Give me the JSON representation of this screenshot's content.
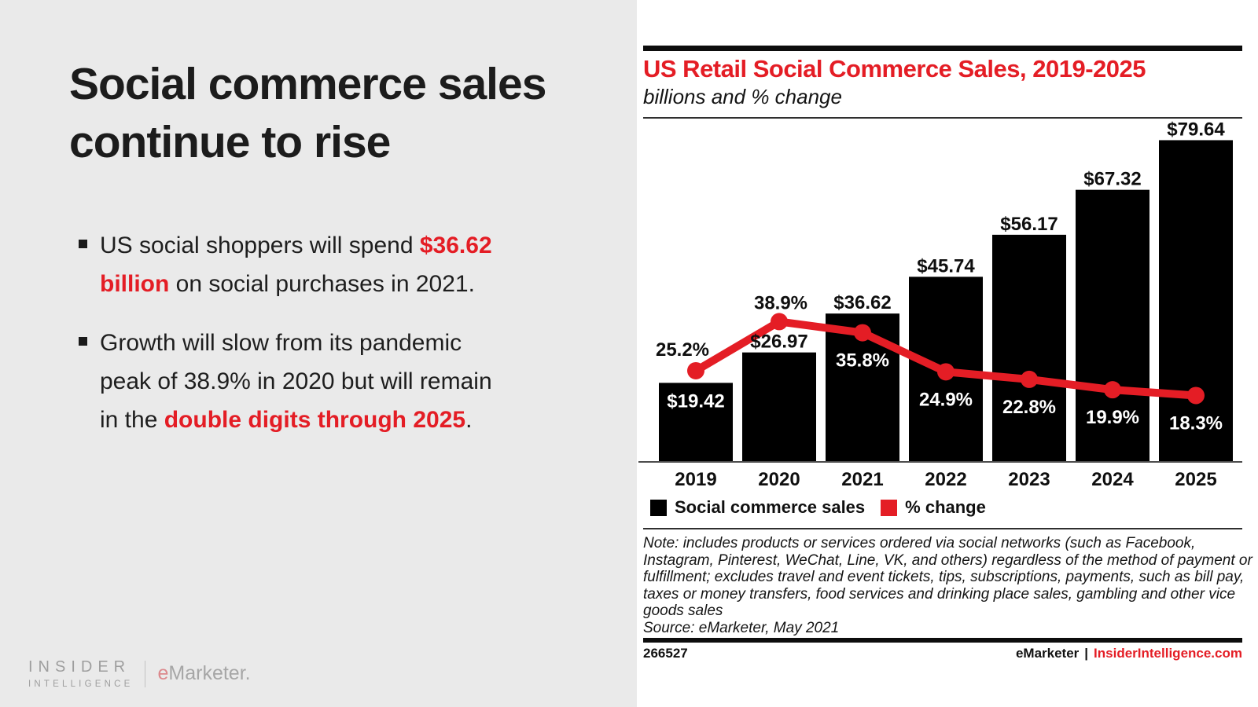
{
  "accent_red": "#e41d25",
  "left_panel": {
    "headline": "Social commerce sales continue to rise",
    "bullets": [
      {
        "segments": [
          {
            "text": "US social shoppers will spend ",
            "style": "normal"
          },
          {
            "text": "$36.62 billion",
            "style": "accent"
          },
          {
            "text": " on social purchases in 2021.",
            "style": "normal"
          }
        ]
      },
      {
        "segments": [
          {
            "text": "Growth will slow from its pandemic peak of 38.9% in 2020 but will remain in the ",
            "style": "normal"
          },
          {
            "text": "double digits through 2025",
            "style": "accent"
          },
          {
            "text": ".",
            "style": "normal"
          }
        ]
      }
    ],
    "logo": {
      "line1": "INSIDER",
      "line2": "INTELLIGENCE",
      "brand_e": "e",
      "brand_rest": "Marketer."
    }
  },
  "chart_data": {
    "type": "bar",
    "title": "US Retail Social Commerce Sales, 2019-2025",
    "subtitle": "billions and % change",
    "categories": [
      "2019",
      "2020",
      "2021",
      "2022",
      "2023",
      "2024",
      "2025"
    ],
    "series": [
      {
        "name": "Social commerce sales",
        "kind": "bar",
        "unit": "billions USD",
        "color": "#000000",
        "values": [
          19.42,
          26.97,
          36.62,
          45.74,
          56.17,
          67.32,
          79.64
        ],
        "labels": [
          "$19.42",
          "$26.97",
          "$36.62",
          "$45.74",
          "$56.17",
          "$67.32",
          "$79.64"
        ]
      },
      {
        "name": "% change",
        "kind": "line",
        "unit": "percent",
        "color": "#e41d25",
        "values": [
          25.2,
          38.9,
          35.8,
          24.9,
          22.8,
          19.9,
          18.3
        ],
        "labels": [
          "25.2%",
          "38.9%",
          "35.8%",
          "24.9%",
          "22.8%",
          "19.9%",
          "18.3%"
        ]
      }
    ],
    "xlabel": "",
    "ylabel": "",
    "ylim": [
      0,
      84
    ],
    "y2lim": [
      0,
      95
    ],
    "grid": false,
    "axes_hidden": true,
    "legend_position": "bottom"
  },
  "chart_notes": {
    "note_lines": [
      "Note: includes products or services ordered via social networks (such as Facebook,",
      "Instagram, Pinterest, WeChat, Line, VK, and others) regardless of the method of payment or",
      "fulfillment; excludes travel and event tickets, tips, subscriptions, payments, such as bill pay,",
      "taxes or money transfers, food services and drinking place sales, gambling and other vice",
      "goods sales"
    ],
    "source": "Source: eMarketer, May 2021"
  },
  "footer": {
    "id": "266527",
    "brand": "eMarketer",
    "divider": "|",
    "site": "InsiderIntelligence.com"
  }
}
